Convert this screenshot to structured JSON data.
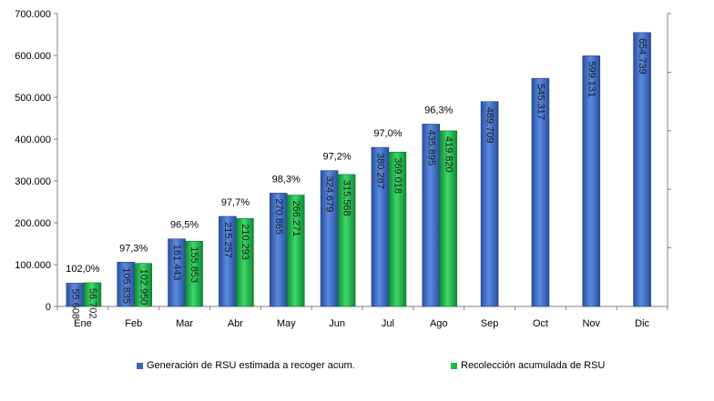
{
  "chart_data": {
    "type": "bar",
    "title": "",
    "xlabel": "",
    "ylabel": "",
    "categories": [
      "Ene",
      "Feb",
      "Mar",
      "Abr",
      "May",
      "Jun",
      "Jul",
      "Ago",
      "Sep",
      "Oct",
      "Nov",
      "Dic"
    ],
    "ylim": [
      0,
      700000
    ],
    "yticks": [
      0,
      100000,
      200000,
      300000,
      400000,
      500000,
      600000,
      700000
    ],
    "ytick_labels": [
      "0",
      "100.000",
      "200.000",
      "300.000",
      "400.000",
      "500.000",
      "600.000",
      "700.000"
    ],
    "series": [
      {
        "name": "Generación de RSU estimada a recoger acum.",
        "color": "#3a66c0",
        "values": [
          55608,
          105835,
          161443,
          215257,
          270865,
          324679,
          380287,
          435895,
          489709,
          545317,
          599131,
          654739
        ],
        "value_labels": [
          "55.608",
          "105.835",
          "161.443",
          "215.257",
          "270.865",
          "324.679",
          "380.287",
          "435.895",
          "489.709",
          "545.317",
          "599.131",
          "654.739"
        ]
      },
      {
        "name": "Recolección acumulada de RSU",
        "color": "#1fb84a",
        "values": [
          56702,
          102950,
          155853,
          210293,
          266271,
          315568,
          369018,
          419820,
          null,
          null,
          null,
          null
        ],
        "value_labels": [
          "56.702",
          "102.950",
          "155.853",
          "210.293",
          "266.271",
          "315.568",
          "369.018",
          "419.820",
          null,
          null,
          null,
          null
        ]
      }
    ],
    "percent_labels": [
      "102,0%",
      "97,3%",
      "96,5%",
      "97,7%",
      "98,3%",
      "97,2%",
      "97,0%",
      "96,3%",
      null,
      null,
      null,
      null
    ],
    "grid": false,
    "legend_position": "bottom"
  }
}
